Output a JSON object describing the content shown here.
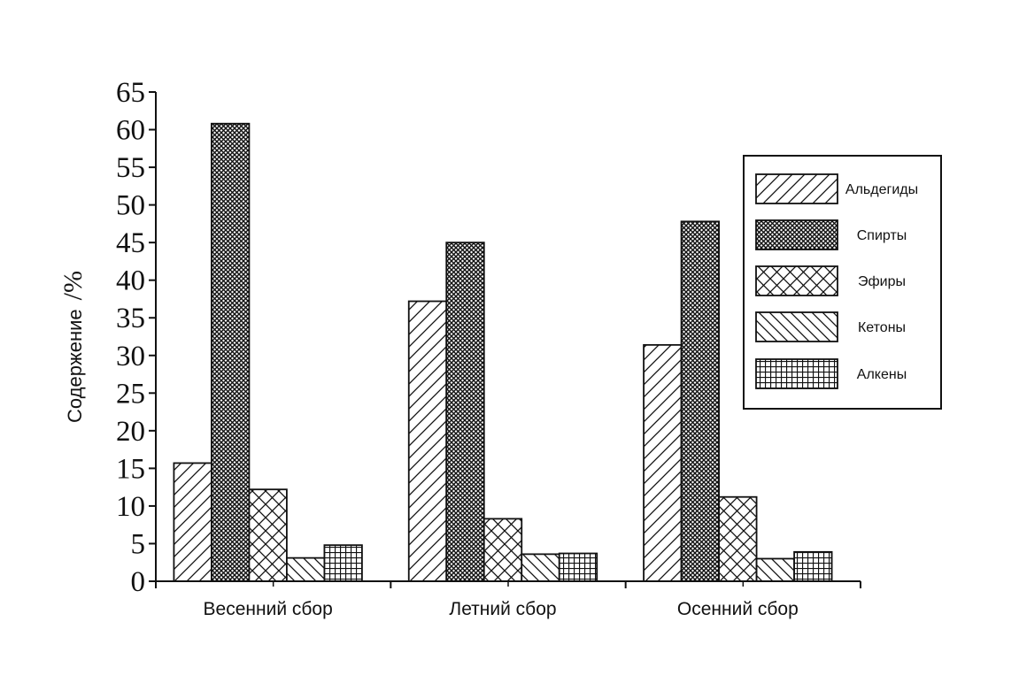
{
  "chart_data": {
    "type": "bar",
    "ylabel": "Содержение",
    "ylabel_unit": "/%",
    "ylim": [
      0,
      65
    ],
    "yticks": [
      0,
      5,
      10,
      15,
      20,
      25,
      30,
      35,
      40,
      45,
      50,
      55,
      60,
      65
    ],
    "categories": [
      "Весенний сбор",
      "Летний сбор",
      "Осенний сбор"
    ],
    "series": [
      {
        "name": "Альдегиды",
        "pattern": "diagonal-forward",
        "values": [
          15.7,
          37.2,
          31.4
        ]
      },
      {
        "name": "Спирты",
        "pattern": "dense-crosshatch",
        "values": [
          60.8,
          45.0,
          47.8
        ]
      },
      {
        "name": "Эфиры",
        "pattern": "diagonal-crosshatch",
        "values": [
          12.2,
          8.3,
          11.2
        ]
      },
      {
        "name": "Кетоны",
        "pattern": "diagonal-backward",
        "values": [
          3.1,
          3.6,
          3.0
        ]
      },
      {
        "name": "Алкены",
        "pattern": "grid",
        "values": [
          4.8,
          3.7,
          3.9
        ]
      }
    ],
    "legend_position": "top-right",
    "grid": false,
    "colors": {
      "stroke": "#111111",
      "fill": "#ffffff"
    }
  }
}
